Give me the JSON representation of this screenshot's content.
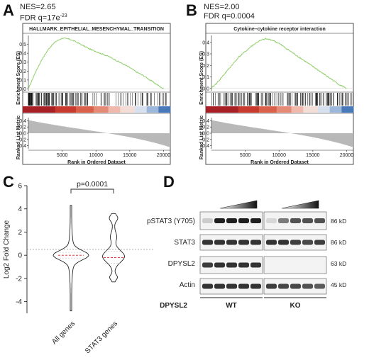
{
  "panels": {
    "A": {
      "letter": "A",
      "nes": "NES=2.65",
      "fdr_prefix": "FDR q=17e",
      "fdr_exp": "-23",
      "gsea_title": "HALLMARK_EPITHELIAL_MESENCHYMAL_TRANSITION"
    },
    "B": {
      "letter": "B",
      "nes": "NES=2.00",
      "fdr_prefix": "FDR q=0.0004",
      "fdr_exp": "",
      "gsea_title": "Cytokine–cytokine receptor interaction"
    },
    "C": {
      "letter": "C",
      "pvalue": "p=0.0001",
      "ylabel": "Log2 Fold Change",
      "yticks": [
        "6",
        "4",
        "2",
        "0",
        "-2",
        "-4"
      ],
      "categories": [
        "All genes",
        "STAT3 genes"
      ]
    },
    "D": {
      "letter": "D",
      "rows": [
        "pSTAT3 (Y705)",
        "STAT3",
        "DPYSL2",
        "Actin"
      ],
      "sizes": [
        "86 kD",
        "86 kD",
        "63 kD",
        "45 kD"
      ],
      "group_label": "DPYSL2",
      "groups": [
        "WT",
        "KO"
      ]
    }
  },
  "gsea_common": {
    "es_ylabel": "Enrichment Score (ES)",
    "rlm_ylabel": "Ranked List Metric",
    "xlabel": "Rank in Ordered Dataset",
    "es_ticks": [
      "0.5",
      "0.4",
      "0.3",
      "0.2",
      "0.1",
      "0.0"
    ],
    "es_ticks_B": [
      "0.4",
      "0.3",
      "0.2",
      "0.1",
      "0.0"
    ],
    "rlm_ticks": [
      "0.4",
      "0.2",
      "0.0",
      "-0.2",
      "-0.4"
    ],
    "x_ticks": [
      "5000",
      "10000",
      "15000",
      "20000"
    ],
    "curve_color": "#8fce6a",
    "heat_colors": [
      "#a62025",
      "#c83a30",
      "#d9604a",
      "#e58a76",
      "#efb9ad",
      "#f3ddd7",
      "#d7e0ee",
      "#9db7da",
      "#4a79bb"
    ]
  },
  "chart_data": [
    {
      "type": "line",
      "title": "HALLMARK_EPITHELIAL_MESENCHYMAL_TRANSITION",
      "xlabel": "Rank in Ordered Dataset",
      "ylabel": "Enrichment Score (ES)",
      "x": [
        0,
        1000,
        2000,
        3000,
        4000,
        5000,
        6000,
        7000,
        8000,
        9000,
        10000,
        11000,
        12000,
        13000,
        14000,
        15000,
        16000,
        17000,
        18000,
        19000,
        20000
      ],
      "y": [
        0.0,
        0.18,
        0.33,
        0.45,
        0.53,
        0.57,
        0.56,
        0.53,
        0.49,
        0.45,
        0.42,
        0.39,
        0.36,
        0.32,
        0.28,
        0.24,
        0.19,
        0.15,
        0.1,
        0.05,
        0.0
      ],
      "ylim": [
        -0.02,
        0.6
      ],
      "xlim": [
        0,
        21000
      ]
    },
    {
      "type": "line",
      "title": "Cytokine–cytokine receptor interaction",
      "xlabel": "Rank in Ordered Dataset",
      "ylabel": "Enrichment Score (ES)",
      "x": [
        0,
        1000,
        2000,
        3000,
        4000,
        5000,
        6000,
        7000,
        8000,
        9000,
        10000,
        11000,
        12000,
        13000,
        14000,
        15000,
        16000,
        17000,
        18000,
        19000,
        20000
      ],
      "y": [
        0.0,
        0.06,
        0.13,
        0.2,
        0.27,
        0.32,
        0.37,
        0.41,
        0.43,
        0.42,
        0.39,
        0.35,
        0.31,
        0.27,
        0.23,
        0.19,
        0.15,
        0.11,
        0.07,
        0.03,
        0.0
      ],
      "ylim": [
        -0.02,
        0.46
      ],
      "xlim": [
        0,
        21000
      ]
    },
    {
      "type": "violin",
      "categories": [
        "All genes",
        "STAT3 genes"
      ],
      "ylabel": "Log2 Fold Change",
      "ylim": [
        -5,
        6
      ],
      "yticks": [
        6,
        4,
        2,
        0,
        -2,
        -4
      ],
      "annotation": "p=0.0001",
      "series": [
        {
          "name": "All genes",
          "min": -4.8,
          "max": 4.3,
          "median": 0.0
        },
        {
          "name": "STAT3 genes",
          "min": -2.3,
          "max": 3.6,
          "median": -0.2
        }
      ]
    }
  ]
}
